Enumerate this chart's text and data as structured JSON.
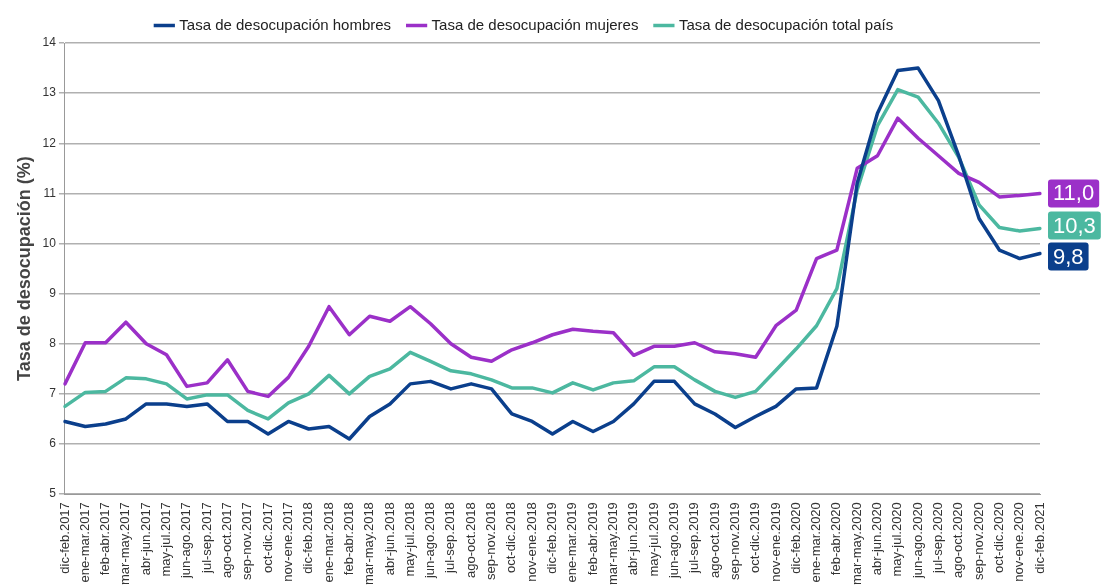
{
  "chart_data": {
    "type": "line",
    "ylabel": "Tasa de desocupación (%)",
    "categories": [
      "dic-feb.2017",
      "ene-mar.2017",
      "feb-abr.2017",
      "mar-may.2017",
      "abr-jun.2017",
      "may-jul.2017",
      "jun-ago.2017",
      "jul-sep.2017",
      "ago-oct.2017",
      "sep-nov.2017",
      "oct-dic.2017",
      "nov-ene.2017",
      "dic-feb.2018",
      "ene-mar.2018",
      "feb-abr.2018",
      "mar-may.2018",
      "abr-jun.2018",
      "may-jul.2018",
      "jun-ago.2018",
      "jul-sep.2018",
      "ago-oct.2018",
      "sep-nov.2018",
      "oct-dic.2018",
      "nov-ene.2018",
      "dic-feb.2019",
      "ene-mar.2019",
      "feb-abr.2019",
      "mar-may.2019",
      "abr-jun.2019",
      "may-jul.2019",
      "jun-ago.2019",
      "jul-sep.2019",
      "ago-oct.2019",
      "sep-nov.2019",
      "oct-dic.2019",
      "nov-ene.2019",
      "dic-feb.2020",
      "ene-mar.2020",
      "feb-abr.2020",
      "mar-may.2020",
      "abr-jun.2020",
      "may-jul.2020",
      "jun-ago.2020",
      "jul-sep.2020",
      "ago-oct.2020",
      "sep-nov.2020",
      "oct-dic.2020",
      "nov-ene.2020",
      "dic-feb.2021"
    ],
    "series": [
      {
        "name": "Tasa de desocupación hombres",
        "color": "#0b3f8c",
        "values": [
          6.45,
          6.35,
          6.4,
          6.5,
          6.8,
          6.8,
          6.75,
          6.8,
          6.45,
          6.45,
          6.2,
          6.45,
          6.3,
          6.35,
          6.1,
          6.55,
          6.8,
          7.2,
          7.25,
          7.1,
          7.2,
          7.1,
          6.6,
          6.45,
          6.2,
          6.45,
          6.25,
          6.45,
          6.8,
          7.25,
          7.25,
          6.8,
          6.6,
          6.33,
          6.55,
          6.75,
          7.1,
          7.12,
          8.35,
          11.2,
          12.6,
          13.45,
          13.5,
          12.85,
          11.75,
          10.5,
          9.87,
          9.7,
          9.8
        ],
        "value_labels": [
          null,
          null,
          null,
          null,
          null,
          null,
          null,
          null,
          null,
          null,
          null,
          null,
          null,
          null,
          null,
          null,
          null,
          null,
          null,
          null,
          null,
          null,
          null,
          null,
          null,
          null,
          null,
          null,
          null,
          null,
          null,
          null,
          null,
          null,
          null,
          null,
          null,
          null,
          null,
          null,
          null,
          null,
          null,
          null,
          null,
          null,
          null,
          null,
          "9,8"
        ]
      },
      {
        "name": "Tasa de desocupación mujeres",
        "color": "#9b30c8",
        "values": [
          7.2,
          8.02,
          8.02,
          8.43,
          8.0,
          7.78,
          7.15,
          7.22,
          7.68,
          7.05,
          6.95,
          7.33,
          7.95,
          8.74,
          8.18,
          8.55,
          8.45,
          8.74,
          8.4,
          8.0,
          7.73,
          7.65,
          7.88,
          8.02,
          8.18,
          8.29,
          8.25,
          8.22,
          7.77,
          7.95,
          7.95,
          8.02,
          7.84,
          7.8,
          7.73,
          8.36,
          8.67,
          9.7,
          9.87,
          11.5,
          11.75,
          12.5,
          12.1,
          11.75,
          11.4,
          11.22,
          10.93,
          10.96,
          11.0
        ],
        "value_labels": [
          null,
          null,
          null,
          null,
          null,
          null,
          null,
          null,
          null,
          null,
          null,
          null,
          null,
          null,
          null,
          null,
          null,
          null,
          null,
          null,
          null,
          null,
          null,
          null,
          null,
          null,
          null,
          null,
          null,
          null,
          null,
          null,
          null,
          null,
          null,
          null,
          null,
          null,
          null,
          null,
          null,
          null,
          null,
          null,
          null,
          null,
          null,
          null,
          "11,0"
        ]
      },
      {
        "name": "Tasa de desocupación total país",
        "color": "#4cb8a0",
        "values": [
          6.75,
          7.03,
          7.05,
          7.32,
          7.3,
          7.2,
          6.9,
          6.98,
          6.98,
          6.67,
          6.5,
          6.82,
          7.0,
          7.37,
          7.0,
          7.35,
          7.5,
          7.83,
          7.65,
          7.46,
          7.4,
          7.28,
          7.12,
          7.12,
          7.02,
          7.22,
          7.08,
          7.22,
          7.26,
          7.54,
          7.54,
          7.28,
          7.05,
          6.93,
          7.05,
          7.47,
          7.9,
          8.36,
          9.1,
          11.07,
          12.35,
          13.07,
          12.92,
          12.4,
          11.72,
          10.77,
          10.32,
          10.25,
          10.3
        ],
        "value_labels": [
          null,
          null,
          null,
          null,
          null,
          null,
          null,
          null,
          null,
          null,
          null,
          null,
          null,
          null,
          null,
          null,
          null,
          null,
          null,
          null,
          null,
          null,
          null,
          null,
          null,
          null,
          null,
          null,
          null,
          null,
          null,
          null,
          null,
          null,
          null,
          null,
          null,
          null,
          null,
          null,
          null,
          null,
          null,
          null,
          null,
          null,
          null,
          null,
          "10,3"
        ]
      }
    ],
    "ylim": [
      5,
      14
    ],
    "yticks": [
      5,
      6,
      7,
      8,
      9,
      10,
      11,
      12,
      13,
      14
    ],
    "grid": "y",
    "legend": "top",
    "marker": "none",
    "line_style": "solid"
  }
}
